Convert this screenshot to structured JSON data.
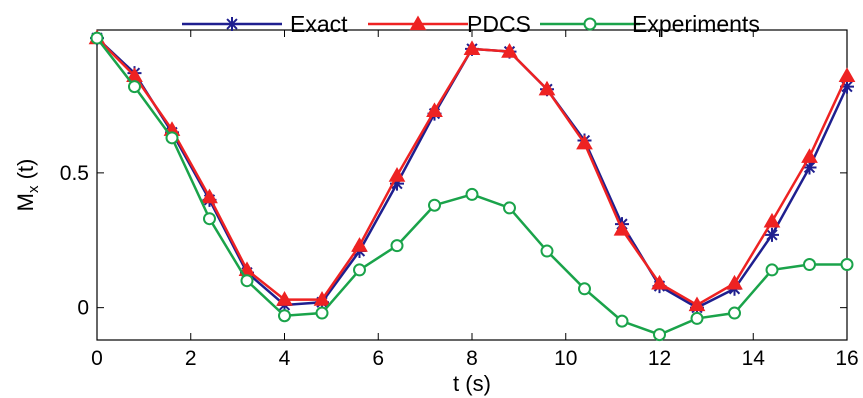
{
  "chart_data": {
    "type": "line",
    "xlabel": "t (s)",
    "ylabel": "M",
    "ylabel_sub": "x",
    "ylabel_suffix": " (t)",
    "xlim": [
      0,
      16
    ],
    "ylim": [
      -0.12,
      1.03
    ],
    "xticks": [
      0,
      2,
      4,
      6,
      8,
      10,
      12,
      14,
      16
    ],
    "xtick_labels": [
      "0",
      "2",
      "4",
      "6",
      "8",
      "10",
      "12",
      "14",
      "16"
    ],
    "yticks": [
      0,
      0.5
    ],
    "ytick_labels": [
      "0",
      "0.5"
    ],
    "grid": false,
    "legend_position": "top",
    "series": [
      {
        "name": "Exact",
        "color": "#1f1f8f",
        "marker": "asterisk",
        "x": [
          0,
          0.8,
          1.6,
          2.4,
          3.2,
          4.0,
          4.8,
          5.6,
          6.4,
          7.2,
          8.0,
          8.8,
          9.6,
          10.4,
          11.2,
          12.0,
          12.8,
          13.6,
          14.4,
          15.2,
          16.0
        ],
        "values": [
          1.0,
          0.87,
          0.65,
          0.4,
          0.13,
          0.01,
          0.02,
          0.21,
          0.46,
          0.72,
          0.96,
          0.95,
          0.81,
          0.62,
          0.31,
          0.08,
          0.0,
          0.07,
          0.27,
          0.52,
          0.82
        ]
      },
      {
        "name": "PDCS",
        "color": "#ee2222",
        "marker": "triangle",
        "x": [
          0,
          0.8,
          1.6,
          2.4,
          3.2,
          4.0,
          4.8,
          5.6,
          6.4,
          7.2,
          8.0,
          8.8,
          9.6,
          10.4,
          11.2,
          12.0,
          12.8,
          13.6,
          14.4,
          15.2,
          16.0
        ],
        "values": [
          1.0,
          0.86,
          0.66,
          0.41,
          0.14,
          0.03,
          0.03,
          0.23,
          0.49,
          0.73,
          0.96,
          0.95,
          0.81,
          0.61,
          0.29,
          0.09,
          0.01,
          0.09,
          0.32,
          0.56,
          0.86
        ]
      },
      {
        "name": "Experiments",
        "color": "#1aa34a",
        "marker": "circle",
        "x": [
          0,
          0.8,
          1.6,
          2.4,
          3.2,
          4.0,
          4.8,
          5.6,
          6.4,
          7.2,
          8.0,
          8.8,
          9.6,
          10.4,
          11.2,
          12.0,
          12.8,
          13.6,
          14.4,
          15.2,
          16.0
        ],
        "values": [
          1.0,
          0.82,
          0.63,
          0.33,
          0.1,
          -0.03,
          -0.02,
          0.14,
          0.23,
          0.38,
          0.42,
          0.37,
          0.21,
          0.07,
          -0.05,
          -0.1,
          -0.04,
          -0.02,
          0.14,
          0.16,
          0.16
        ]
      }
    ]
  }
}
